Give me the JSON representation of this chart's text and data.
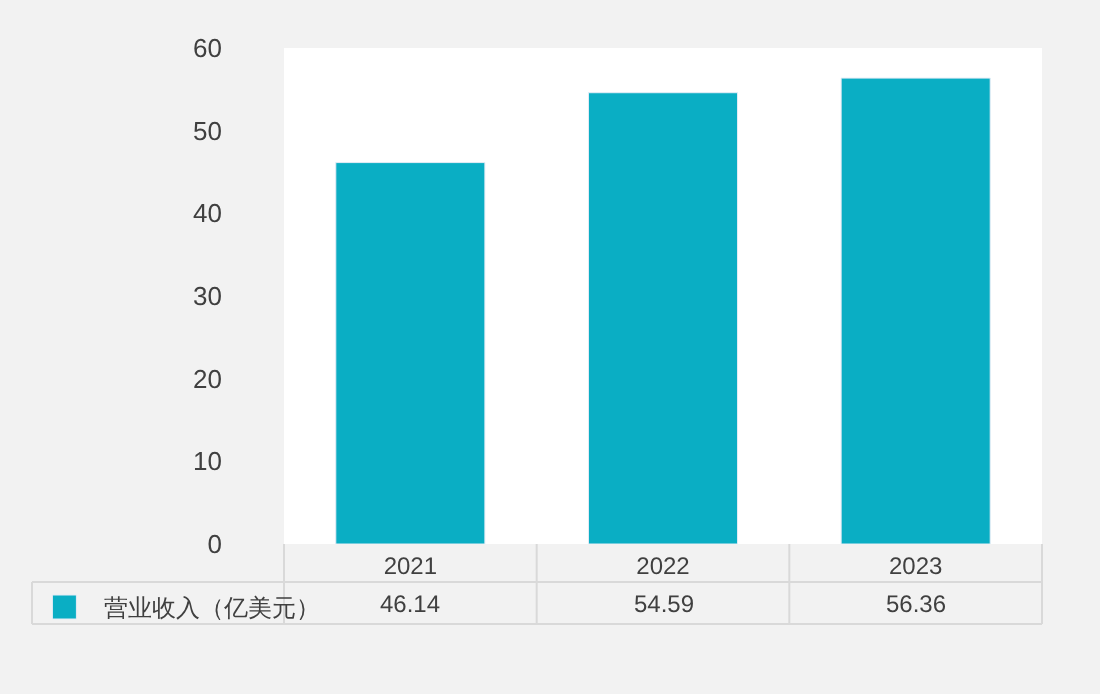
{
  "chart_data": {
    "type": "bar",
    "categories": [
      "2021",
      "2022",
      "2023"
    ],
    "series": [
      {
        "name": "营业收入（亿美元）",
        "color": "#0aaec4",
        "values": [
          46.14,
          54.59,
          56.36
        ]
      }
    ],
    "ylim": [
      0,
      60
    ],
    "yticks": [
      0,
      10,
      20,
      30,
      40,
      50,
      60
    ],
    "legend": "bottom left",
    "data_labels": true
  }
}
